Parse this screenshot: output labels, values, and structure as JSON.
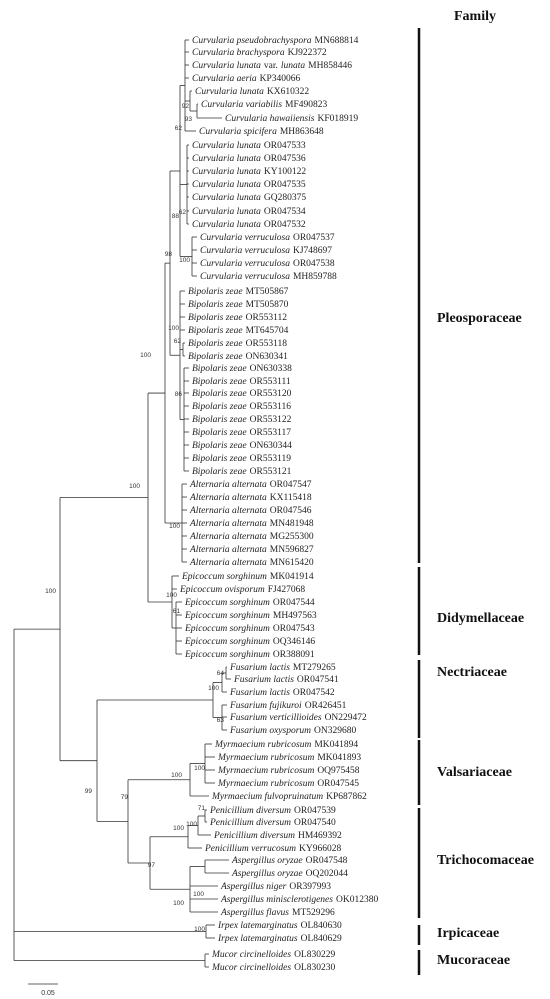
{
  "header": {
    "title": "Family"
  },
  "taxa": [
    {
      "name": "Curvularia pseudobrachyspora",
      "accession": "MN688814"
    },
    {
      "name": "Curvularia brachyspora",
      "accession": "KJ922372"
    },
    {
      "name": "Curvularia lunata",
      "rank": "var.",
      "epithet": "lunata",
      "accession": "MH858446"
    },
    {
      "name": "Curvularia aeria",
      "accession": "KP340066"
    },
    {
      "name": "Curvularia lunata",
      "accession": "KX610322"
    },
    {
      "name": "Curvularia variabilis",
      "accession": "MF490823"
    },
    {
      "name": "Curvularia hawaiiensis",
      "accession": "KF018919"
    },
    {
      "name": "Curvularia spicifera",
      "accession": "MH863648"
    },
    {
      "name": "Curvularia lunata",
      "accession": "OR047533"
    },
    {
      "name": "Curvularia lunata",
      "accession": "OR047536"
    },
    {
      "name": "Curvularia lunata",
      "accession": "KY100122"
    },
    {
      "name": "Curvularia lunata",
      "accession": "OR047535"
    },
    {
      "name": "Curvularia lunata",
      "accession": "GQ280375"
    },
    {
      "name": "Curvularia lunata",
      "accession": "OR047534"
    },
    {
      "name": "Curvularia lunata",
      "accession": "OR047532"
    },
    {
      "name": "Curvularia verruculosa",
      "accession": "OR047537"
    },
    {
      "name": "Curvularia verruculosa",
      "accession": "KJ748697"
    },
    {
      "name": "Curvularia verruculosa",
      "accession": "OR047538"
    },
    {
      "name": "Curvularia verruculosa",
      "accession": "MH859788"
    },
    {
      "name": "Bipolaris zeae",
      "accession": "MT505867"
    },
    {
      "name": "Bipolaris zeae",
      "accession": "MT505870"
    },
    {
      "name": "Bipolaris zeae",
      "accession": "OR553112"
    },
    {
      "name": "Bipolaris zeae",
      "accession": "MT645704"
    },
    {
      "name": "Bipolaris zeae",
      "accession": "OR553118"
    },
    {
      "name": "Bipolaris zeae",
      "accession": "ON630341"
    },
    {
      "name": "Bipolaris zeae",
      "accession": "ON630338"
    },
    {
      "name": "Bipolaris zeae",
      "accession": "OR553111"
    },
    {
      "name": "Bipolaris zeae",
      "accession": "OR553120"
    },
    {
      "name": "Bipolaris zeae",
      "accession": "OR553116"
    },
    {
      "name": "Bipolaris zeae",
      "accession": "OR553122"
    },
    {
      "name": "Bipolaris zeae",
      "accession": "OR553117"
    },
    {
      "name": "Bipolaris zeae",
      "accession": "ON630344"
    },
    {
      "name": "Bipolaris zeae",
      "accession": "OR553119"
    },
    {
      "name": "Bipolaris zeae",
      "accession": "OR553121"
    },
    {
      "name": "Alternaria alternata",
      "accession": "OR047547"
    },
    {
      "name": "Alternaria alternata",
      "accession": "KX115418"
    },
    {
      "name": "Alternaria alternata",
      "accession": "OR047546"
    },
    {
      "name": "Alternaria alternata",
      "accession": "MN481948"
    },
    {
      "name": "Alternaria alternata",
      "accession": "MG255300"
    },
    {
      "name": "Alternaria alternata",
      "accession": "MN596827"
    },
    {
      "name": "Alternaria alternata",
      "accession": "MN615420"
    },
    {
      "name": "Epicoccum sorghinum",
      "accession": "MK041914"
    },
    {
      "name": "Epicoccum ovisporum",
      "accession": "FJ427068"
    },
    {
      "name": "Epicoccum sorghinum",
      "accession": "OR047544"
    },
    {
      "name": "Epicoccum sorghinum",
      "accession": "MH497563"
    },
    {
      "name": "Epicoccum sorghinum",
      "accession": "OR047543"
    },
    {
      "name": "Epicoccum sorghinum",
      "accession": "OQ346146"
    },
    {
      "name": "Epicoccum sorghinum",
      "accession": "OR388091"
    },
    {
      "name": "Fusarium lactis",
      "accession": "MT279265"
    },
    {
      "name": "Fusarium lactis",
      "accession": "OR047541"
    },
    {
      "name": "Fusarium lactis",
      "accession": "OR047542"
    },
    {
      "name": "Fusarium fujikuroi",
      "accession": "OR426451"
    },
    {
      "name": "Fusarium verticillioides",
      "accession": "ON229472"
    },
    {
      "name": "Fusarium oxysporum",
      "accession": "ON329680"
    },
    {
      "name": "Myrmaecium rubricosum",
      "accession": "MK041894"
    },
    {
      "name": "Myrmaecium rubricosum",
      "accession": "MK041893"
    },
    {
      "name": "Myrmaecium rubricosum",
      "accession": "OQ975458"
    },
    {
      "name": "Myrmaecium rubricosum",
      "accession": "OR047545"
    },
    {
      "name": "Myrmaecium fulvopruinatum",
      "accession": "KP687862"
    },
    {
      "name": "Penicillium diversum",
      "accession": "OR047539"
    },
    {
      "name": "Penicillium diversum",
      "accession": "OR047540"
    },
    {
      "name": "Penicillium diversum",
      "accession": "HM469392"
    },
    {
      "name": "Penicillium verrucosum",
      "accession": "KY966028"
    },
    {
      "name": "Aspergillus oryzae",
      "accession": "OR047548"
    },
    {
      "name": "Aspergillus oryzae",
      "accession": "OQ202044"
    },
    {
      "name": "Aspergillus niger",
      "accession": "OR397993"
    },
    {
      "name": "Aspergillus minisclerotigenes",
      "accession": "OK012380"
    },
    {
      "name": "Aspergillus flavus",
      "accession": "MT529296"
    },
    {
      "name": "Irpex latemarginatus",
      "accession": "OL840630"
    },
    {
      "name": "Irpex latemarginatus",
      "accession": "OL840629"
    },
    {
      "name": "Mucor circinelloides",
      "accession": "OL830229"
    },
    {
      "name": "Mucor circinelloides",
      "accession": "OL830230"
    }
  ],
  "supports": [
    92,
    93,
    62,
    62,
    88,
    98,
    100,
    62,
    100,
    86,
    100,
    100,
    100,
    100,
    61,
    100,
    64,
    100,
    63,
    99,
    100,
    100,
    79,
    71,
    100,
    100,
    97,
    100,
    100,
    100
  ],
  "families": [
    "Pleosporaceae",
    "Didymellaceae",
    "Nectriaceae",
    "Valsariaceae",
    "Trichocomaceae",
    "Irpicaceae",
    "Mucoraceae"
  ],
  "scale_bar": {
    "label": "0.05"
  }
}
